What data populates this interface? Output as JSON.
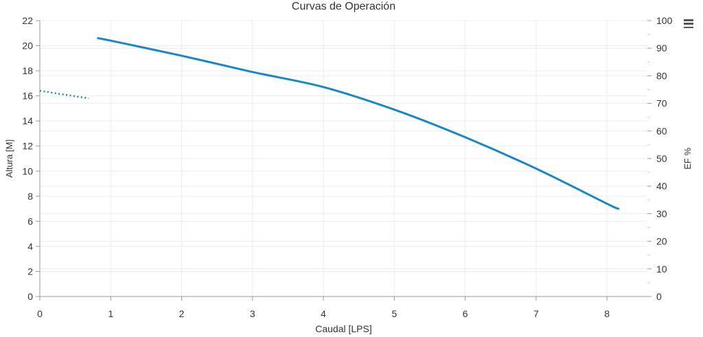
{
  "chart": {
    "title": "Curvas de Operación",
    "menu_icon": "hamburger-menu-icon"
  },
  "chart_data": {
    "type": "line",
    "title": "Curvas de Operación",
    "xlabel": "Caudal [LPS]",
    "ylabel_left": "Altura [M]",
    "ylabel_right": "EF %",
    "legend": "none",
    "grid": true,
    "x_axis": {
      "min": 0,
      "max": 8.57,
      "ticks": [
        0,
        1,
        2,
        3,
        4,
        5,
        6,
        7,
        8
      ]
    },
    "y_axis_left": {
      "min": 0,
      "max": 22,
      "ticks": [
        0,
        2,
        4,
        6,
        8,
        10,
        12,
        14,
        16,
        18,
        20,
        22
      ]
    },
    "y_axis_right": {
      "min": 0,
      "max": 100,
      "ticks": [
        0,
        10,
        20,
        30,
        40,
        50,
        60,
        70,
        80,
        90,
        100
      ],
      "minor_tick_step": 5
    },
    "series": [
      {
        "name": "solid-curve",
        "style": "solid",
        "axis": "left",
        "color": "#1787c7",
        "points": [
          [
            0.82,
            20.6
          ],
          [
            1,
            20.4
          ],
          [
            2,
            19.2
          ],
          [
            3,
            17.9
          ],
          [
            4,
            16.7
          ],
          [
            5,
            14.9
          ],
          [
            6,
            12.7
          ],
          [
            7,
            10.2
          ],
          [
            8,
            7.4
          ],
          [
            8.16,
            7.0
          ]
        ]
      },
      {
        "name": "dotted-curve",
        "style": "dotted",
        "axis": "left",
        "color": "#1787c7",
        "points": [
          [
            0,
            16.4
          ],
          [
            0.69,
            15.8
          ]
        ]
      }
    ]
  },
  "colors": {
    "accent": "#1787c7",
    "grid_line": "#ececec",
    "axis_line": "#999999",
    "minor_tick": "#cccccc",
    "text": "#333333",
    "menu_icon": "#555555"
  }
}
